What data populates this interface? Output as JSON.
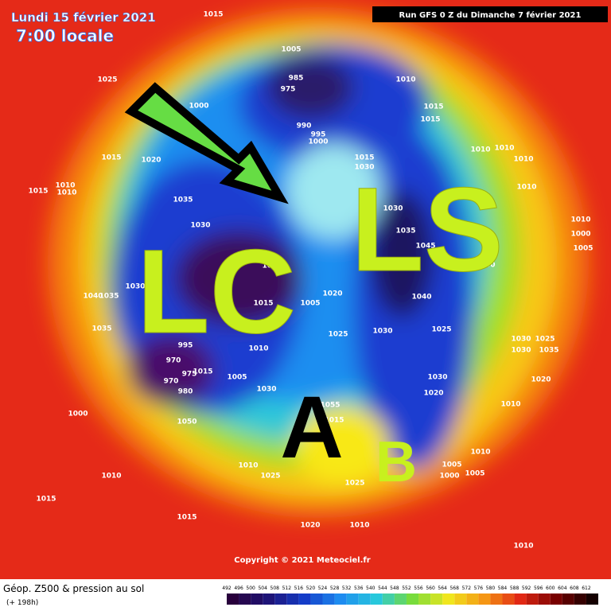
{
  "header": {
    "date": "Lundi 15 février 2021",
    "time": "7:00 locale",
    "run": "Run GFS 0 Z du Dimanche 7 février 2021"
  },
  "annotations": {
    "lc": "LC",
    "ls": "LS",
    "a": "A",
    "b": "B"
  },
  "copyright": "Copyright © 2021 Meteociel.fr",
  "legend": {
    "title": "Géop. Z500 & pression au sol",
    "lead": "(+ 198h)",
    "scale": [
      492,
      496,
      500,
      504,
      508,
      512,
      516,
      520,
      524,
      528,
      532,
      536,
      540,
      544,
      548,
      552,
      556,
      560,
      564,
      568,
      572,
      576,
      580,
      584,
      588,
      592,
      596,
      600,
      604,
      608,
      612
    ]
  },
  "pressure_labels": [
    1015,
    1025,
    1005,
    985,
    975,
    1010,
    1000,
    990,
    995,
    1000,
    1015,
    1015,
    1010,
    1010,
    1010,
    1015,
    1020,
    1015,
    1030,
    1015,
    1010,
    1010,
    1035,
    1010,
    1030,
    1030,
    1035,
    1010,
    1000,
    1005,
    1005,
    1045,
    1050,
    1030,
    1040,
    1035,
    1015,
    1005,
    1020,
    1040,
    1035,
    1030,
    1025,
    1025,
    1010,
    1030,
    1025,
    1030,
    1035,
    1005,
    995,
    970,
    970,
    975,
    980,
    1015,
    1030,
    1030,
    1020,
    1020,
    1000,
    1050,
    1055,
    1015,
    1010,
    1010,
    1005,
    1005,
    1000,
    1010,
    1025,
    1025,
    1010,
    1015,
    1015,
    1020,
    1010,
    1010
  ]
}
